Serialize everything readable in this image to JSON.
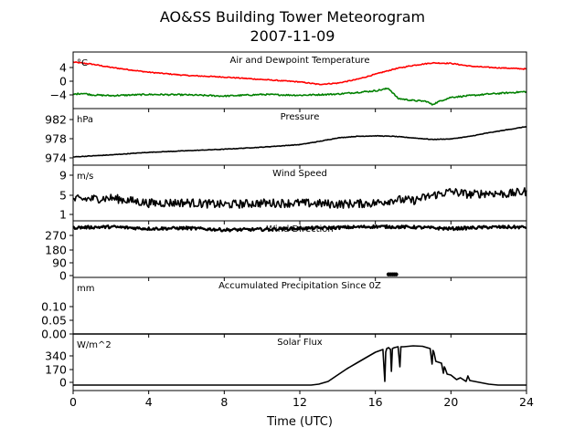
{
  "title": "AO&SS Building Tower Meteorogram",
  "subtitle": "2007-11-09",
  "chart_data": {
    "type": "line",
    "xlabel": "Time (UTC)",
    "xlim": [
      0,
      24
    ],
    "xticks": [
      "0",
      "4",
      "8",
      "12",
      "16",
      "20",
      "24"
    ],
    "panels": [
      {
        "title": "Air and Dewpoint Temperature",
        "unit": "°C",
        "ylim": [
          -6,
          8
        ],
        "yticks": [
          "4",
          "0",
          "−4"
        ],
        "series": [
          {
            "color": "#ff0000",
            "noise": 0.12,
            "x": [
              0,
              1,
              2,
              4,
              6,
              8,
              10,
              12,
              13,
              14,
              15,
              16,
              17,
              18,
              19,
              20,
              21,
              22,
              23,
              24
            ],
            "values": [
              5.5,
              5.0,
              4.2,
              3.0,
              2.2,
              1.8,
              1.2,
              0.6,
              0.0,
              0.3,
              1.2,
              2.5,
              3.8,
              4.7,
              5.3,
              5.2,
              4.5,
              4.2,
              4.0,
              3.8
            ]
          },
          {
            "color": "#008000",
            "noise": 0.18,
            "x": [
              0,
              0.5,
              1,
              2,
              4,
              6,
              8,
              10,
              12,
              14,
              15,
              16,
              16.7,
              17.2,
              18,
              18.7,
              19,
              19.5,
              20,
              21,
              22,
              23,
              24
            ],
            "values": [
              -2.5,
              -2.2,
              -2.6,
              -2.8,
              -2.5,
              -2.6,
              -2.9,
              -2.5,
              -2.7,
              -2.4,
              -2.0,
              -1.6,
              -1.0,
              -3.5,
              -4.0,
              -4.2,
              -5.0,
              -4.0,
              -3.2,
              -2.8,
              -2.4,
              -2.1,
              -1.8
            ]
          }
        ]
      },
      {
        "title": "Pressure",
        "unit": "hPa",
        "ylim": [
          973,
          984
        ],
        "yticks": [
          "982",
          "978",
          "974"
        ],
        "series": [
          {
            "color": "#000000",
            "noise": 0.05,
            "x": [
              0,
              2,
              4,
              6,
              8,
              10,
              12,
              13,
              14,
              15,
              16,
              17,
              18,
              19,
              20,
              21,
              22,
              23,
              24
            ],
            "values": [
              974.6,
              975.0,
              975.5,
              975.8,
              976.1,
              976.5,
              977.0,
              977.6,
              978.3,
              978.6,
              978.7,
              978.6,
              978.3,
              978.0,
              978.1,
              978.6,
              979.3,
              979.9,
              980.5
            ]
          }
        ]
      },
      {
        "title": "Wind Speed",
        "unit": "m/s",
        "ylim": [
          0,
          11
        ],
        "yticks": [
          "9",
          "5",
          "1"
        ],
        "series": [
          {
            "color": "#000000",
            "noise": 0.85,
            "x": [
              0,
              2,
              4,
              6,
              8,
              10,
              12,
              14,
              16,
              17,
              18,
              19,
              20,
              21,
              22,
              23,
              24
            ],
            "values": [
              4.2,
              4.5,
              3.5,
              3.6,
              3.2,
              3.5,
              3.5,
              3.3,
              3.5,
              4.2,
              4.0,
              5.0,
              5.8,
              5.2,
              5.5,
              5.3,
              5.8
            ]
          }
        ]
      },
      {
        "title": "Wind Direction",
        "unit": "",
        "ylim": [
          -15,
          360
        ],
        "yticks": [
          "270",
          "180",
          "90",
          "0"
        ],
        "series": [
          {
            "color": "#000000",
            "noise": 10,
            "x": [
              0,
              2,
              4,
              6,
              8,
              10,
              12,
              14,
              16,
              18,
              20,
              22,
              24
            ],
            "values": [
              315,
              320,
              308,
              312,
              300,
              303,
              310,
              315,
              322,
              318,
              308,
              318,
              318
            ]
          },
          {
            "color": "#000000",
            "noise": 0,
            "style": "dots",
            "x": [
              16.7,
              16.8,
              16.9,
              17.0,
              17.1
            ],
            "values": [
              5,
              5,
              5,
              5,
              5
            ]
          }
        ]
      },
      {
        "title": "Accumulated Precipitation Since 0Z",
        "unit": "mm",
        "ylim": [
          0,
          0.2
        ],
        "yticks": [
          "0.10",
          "0.05",
          "0.00"
        ],
        "series": [
          {
            "color": "#000000",
            "noise": 0,
            "x": [
              0,
              24
            ],
            "values": [
              0,
              0
            ]
          }
        ]
      },
      {
        "title": "Solar Flux",
        "unit": "W/m^2",
        "ylim": [
          -60,
          560
        ],
        "yticks": [
          "340",
          "170",
          "0"
        ],
        "series": [
          {
            "color": "#000000",
            "noise": 0,
            "x": [
              0,
              12.6,
              13.0,
              13.5,
              14.0,
              14.5,
              15.0,
              15.5,
              16.0,
              16.4,
              16.5,
              16.55,
              16.6,
              16.7,
              16.8,
              16.85,
              16.9,
              17.0,
              17.2,
              17.3,
              17.35,
              17.4,
              17.5,
              18.0,
              18.5,
              18.9,
              19.0,
              19.05,
              19.1,
              19.2,
              19.5,
              19.6,
              19.65,
              19.7,
              19.8,
              20.0,
              20.3,
              20.5,
              20.8,
              20.9,
              21.0,
              21.5,
              22.0,
              22.5,
              24
            ],
            "values": [
              0,
              0,
              10,
              40,
              110,
              180,
              240,
              300,
              360,
              390,
              40,
              360,
              400,
              410,
              390,
              150,
              400,
              410,
              420,
              200,
              420,
              420,
              420,
              430,
              425,
              400,
              230,
              380,
              360,
              260,
              240,
              130,
              200,
              180,
              120,
              110,
              60,
              80,
              40,
              100,
              50,
              30,
              10,
              0,
              0
            ]
          }
        ]
      }
    ]
  }
}
